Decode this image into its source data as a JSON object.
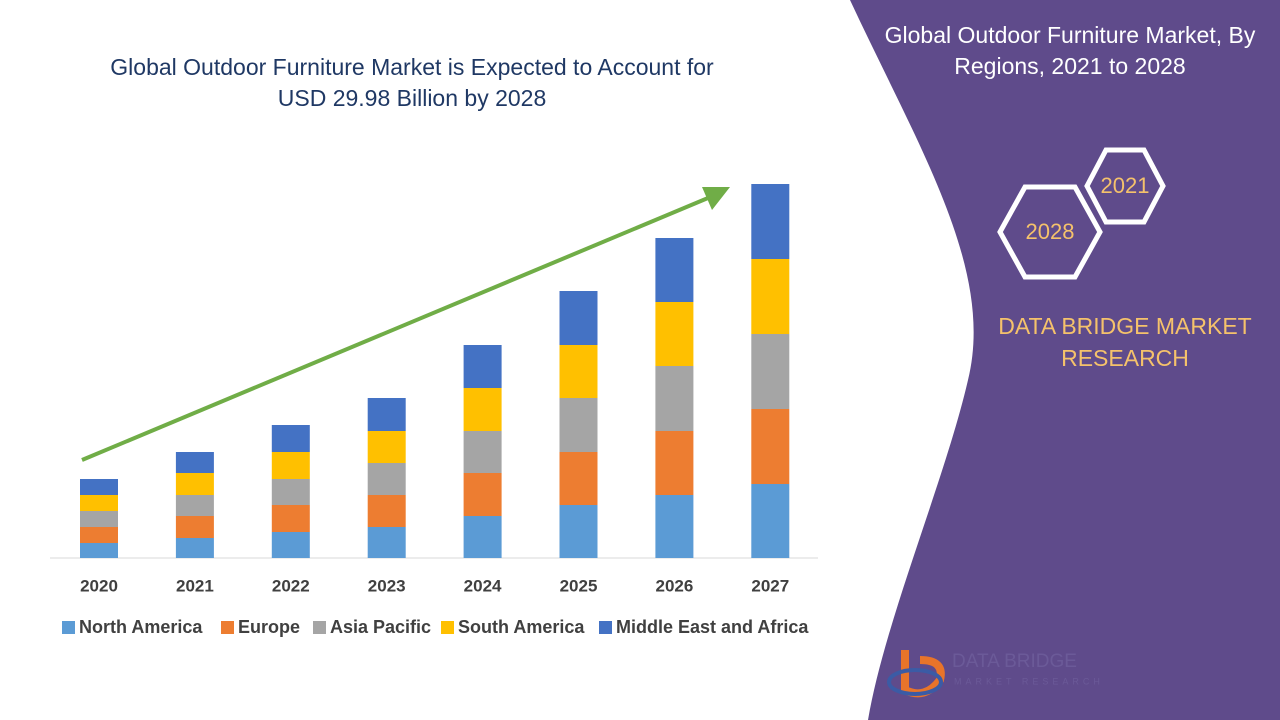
{
  "chart_data": {
    "type": "stacked-bar",
    "title": "Global Outdoor Furniture Market is Expected to Account for USD 29.98 Billion by 2028",
    "categories": [
      "2020",
      "2021",
      "2022",
      "2023",
      "2024",
      "2025",
      "2026",
      "2027"
    ],
    "series": [
      {
        "name": "North America",
        "color": "#5b9bd5",
        "values": [
          15,
          20,
          26,
          31,
          42,
          53,
          63,
          74
        ]
      },
      {
        "name": "Europe",
        "color": "#ed7d31",
        "values": [
          16,
          22,
          27,
          32,
          43,
          53,
          64,
          75
        ]
      },
      {
        "name": "Asia Pacific",
        "color": "#a5a5a5",
        "values": [
          16,
          21,
          26,
          32,
          42,
          54,
          65,
          75
        ]
      },
      {
        "name": "South America",
        "color": "#ffc000",
        "values": [
          16,
          22,
          27,
          32,
          43,
          53,
          64,
          75
        ]
      },
      {
        "name": "Middle East and Africa",
        "color": "#4472c4",
        "values": [
          16,
          21,
          27,
          33,
          43,
          54,
          64,
          75
        ]
      }
    ],
    "legend": "bottom"
  },
  "sidebar": {
    "title": "Global Outdoor Furniture Market, By Regions, 2021 to 2028",
    "hex_top": "2021",
    "hex_bottom": "2028",
    "brand": "DATA BRIDGE MARKET RESEARCH",
    "logo_name": "DATA BRIDGE",
    "logo_sub": "MARKET RESEARCH"
  }
}
